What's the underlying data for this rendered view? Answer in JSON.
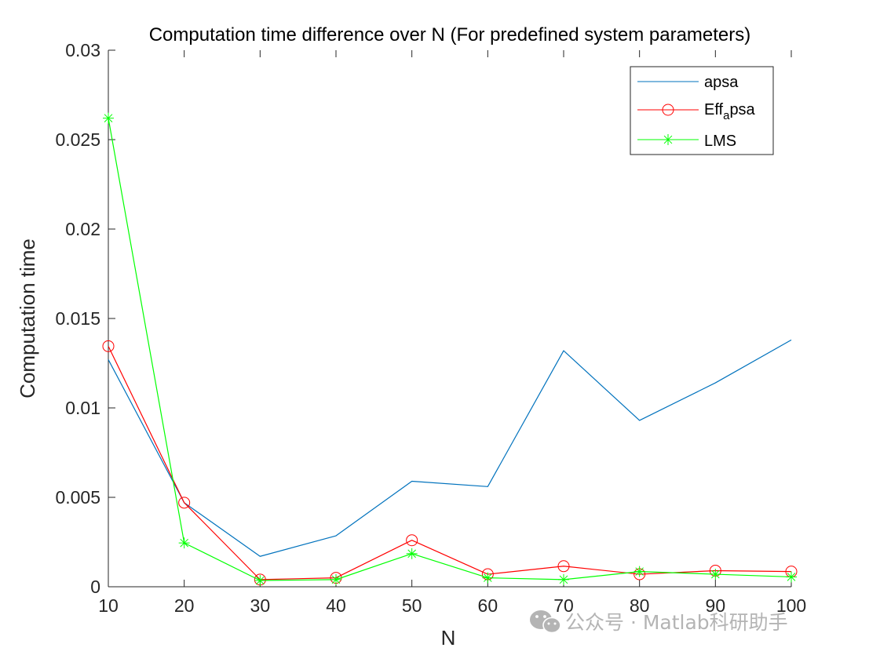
{
  "chart_data": {
    "type": "line",
    "title": "Computation time difference over N (For predefined system parameters)",
    "xlabel": "N",
    "ylabel": "Computation time",
    "x": [
      10,
      20,
      30,
      40,
      50,
      60,
      70,
      80,
      90,
      100
    ],
    "xlim": [
      10,
      100
    ],
    "ylim": [
      0,
      0.03
    ],
    "xticks": [
      10,
      20,
      30,
      40,
      50,
      60,
      70,
      80,
      90,
      100
    ],
    "xtick_labels": [
      "10",
      "20",
      "30",
      "40",
      "50",
      "60",
      "70",
      "80",
      "90",
      "100"
    ],
    "yticks": [
      0,
      0.005,
      0.01,
      0.015,
      0.02,
      0.025,
      0.03
    ],
    "ytick_labels": [
      "0",
      "0.005",
      "0.01",
      "0.015",
      "0.02",
      "0.025",
      "0.03"
    ],
    "grid": false,
    "legend_position": "top-right",
    "series": [
      {
        "name": "apsa",
        "label_main": "apsa",
        "label_sub": "",
        "label_tail": "",
        "color": "#0072BD",
        "marker": "none",
        "values": [
          0.0127,
          0.0047,
          0.0017,
          0.00285,
          0.0059,
          0.0056,
          0.0132,
          0.0093,
          0.0114,
          0.0138
        ]
      },
      {
        "name": "Eff_apsa",
        "label_main": "Eff",
        "label_sub": "a",
        "label_tail": "psa",
        "color": "#FF0000",
        "marker": "circle",
        "values": [
          0.01345,
          0.0047,
          0.0004,
          0.0005,
          0.0026,
          0.0007,
          0.00115,
          0.0007,
          0.0009,
          0.00085
        ]
      },
      {
        "name": "LMS",
        "label_main": "LMS",
        "label_sub": "",
        "label_tail": "",
        "color": "#00FF00",
        "marker": "star",
        "values": [
          0.0262,
          0.00245,
          0.00035,
          0.0004,
          0.00185,
          0.0005,
          0.0004,
          0.00085,
          0.0007,
          0.00055
        ]
      }
    ]
  },
  "watermark": {
    "icon": "wechat-icon",
    "text": "公众号 · Matlab科研助手"
  }
}
